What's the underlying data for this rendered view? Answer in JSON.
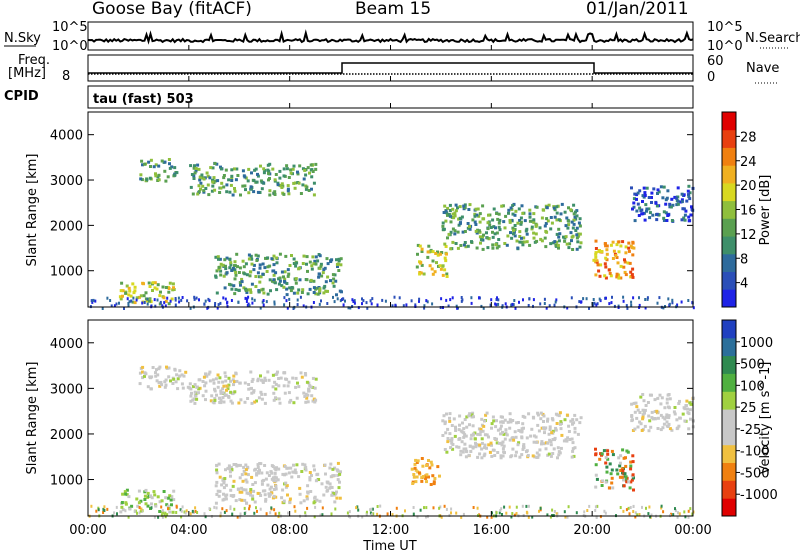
{
  "header": {
    "station": "Goose Bay (fitACF)",
    "beam": "Beam 15",
    "date": "01/Jan/2011"
  },
  "ctrl": {
    "nsky_label": "N.Sky",
    "nsky_ticks": [
      "10^5",
      "10^0"
    ],
    "nsearch_label": "N.Search",
    "nsearch_ticks": [
      "10^5",
      "10^0"
    ],
    "freq_label": "Freq.",
    "freq_unit": "[MHz]",
    "freq_tick": "8",
    "nave_label": "Nave",
    "nave_ticks": [
      "60",
      "0"
    ],
    "cpid_label": "CPID",
    "cpid_value": "tau (fast) 503"
  },
  "chart_data": [
    {
      "type": "heatmap",
      "title": "",
      "ylabel": "Slant Range [km]",
      "xlabel": "",
      "yticks": [
        "1000",
        "2000",
        "3000",
        "4000"
      ],
      "xticks": [
        "00:00",
        "04:00",
        "08:00",
        "12:00",
        "16:00",
        "20:00",
        "00:00"
      ],
      "ylim": [
        200,
        4500
      ],
      "colorbar": {
        "label": "Power [dB]",
        "ticks": [
          "4",
          "8",
          "12",
          "16",
          "20",
          "24",
          "28"
        ],
        "colors": [
          "#1f23e6",
          "#2b4fb8",
          "#2e6b9c",
          "#3e8f6a",
          "#5aa050",
          "#8fbf3c",
          "#d8d820",
          "#f0b020",
          "#f08010",
          "#e84010",
          "#e00000"
        ]
      },
      "echo_regions": [
        {
          "t0": 1.2,
          "t1": 3.4,
          "r0": 300,
          "r1": 800,
          "intensity": "high"
        },
        {
          "t0": 2.0,
          "t1": 3.5,
          "r0": 3000,
          "r1": 3500,
          "intensity": "medium"
        },
        {
          "t0": 4.0,
          "t1": 9.0,
          "r0": 2700,
          "r1": 3400,
          "intensity": "medium"
        },
        {
          "t0": 5.0,
          "t1": 10.0,
          "r0": 500,
          "r1": 1400,
          "intensity": "medium"
        },
        {
          "t0": 13.0,
          "t1": 14.2,
          "r0": 900,
          "r1": 1600,
          "intensity": "high"
        },
        {
          "t0": 14.0,
          "t1": 19.5,
          "r0": 1500,
          "r1": 2500,
          "intensity": "medium"
        },
        {
          "t0": 20.0,
          "t1": 21.6,
          "r0": 800,
          "r1": 1700,
          "intensity": "very-high"
        },
        {
          "t0": 21.5,
          "t1": 24.0,
          "r0": 2100,
          "r1": 2900,
          "intensity": "low"
        }
      ]
    },
    {
      "type": "heatmap",
      "title": "",
      "ylabel": "Slant Range [km]",
      "xlabel": "Time UT",
      "yticks": [
        "1000",
        "2000",
        "3000",
        "4000"
      ],
      "xticks": [
        "00:00",
        "04:00",
        "08:00",
        "12:00",
        "16:00",
        "20:00",
        "00:00"
      ],
      "ylim": [
        200,
        4500
      ],
      "colorbar": {
        "label": "Velocity [m s^-1]",
        "ticks": [
          "1000",
          "500",
          "100",
          "25",
          "-25",
          "-100",
          "-500",
          "-1000"
        ],
        "colors": [
          "#2040c0",
          "#2b6f9a",
          "#2f8a50",
          "#50b040",
          "#a0d040",
          "#c8c8c8",
          "#c8c8c8",
          "#f0c040",
          "#f08010",
          "#e84010",
          "#e00000"
        ]
      },
      "echo_regions": [
        {
          "t0": 1.2,
          "t1": 3.4,
          "r0": 300,
          "r1": 800,
          "velocity": "positive"
        },
        {
          "t0": 2.0,
          "t1": 4.0,
          "r0": 3000,
          "r1": 3500,
          "velocity": "near-zero"
        },
        {
          "t0": 4.0,
          "t1": 9.0,
          "r0": 2700,
          "r1": 3400,
          "velocity": "near-zero"
        },
        {
          "t0": 5.0,
          "t1": 10.0,
          "r0": 500,
          "r1": 1400,
          "velocity": "near-zero"
        },
        {
          "t0": 12.8,
          "t1": 14.0,
          "r0": 900,
          "r1": 1500,
          "velocity": "negative"
        },
        {
          "t0": 14.0,
          "t1": 19.5,
          "r0": 1500,
          "r1": 2500,
          "velocity": "near-zero"
        },
        {
          "t0": 20.0,
          "t1": 21.6,
          "r0": 800,
          "r1": 1700,
          "velocity": "mixed"
        },
        {
          "t0": 21.5,
          "t1": 24.0,
          "r0": 2100,
          "r1": 2900,
          "velocity": "near-zero"
        }
      ]
    }
  ]
}
